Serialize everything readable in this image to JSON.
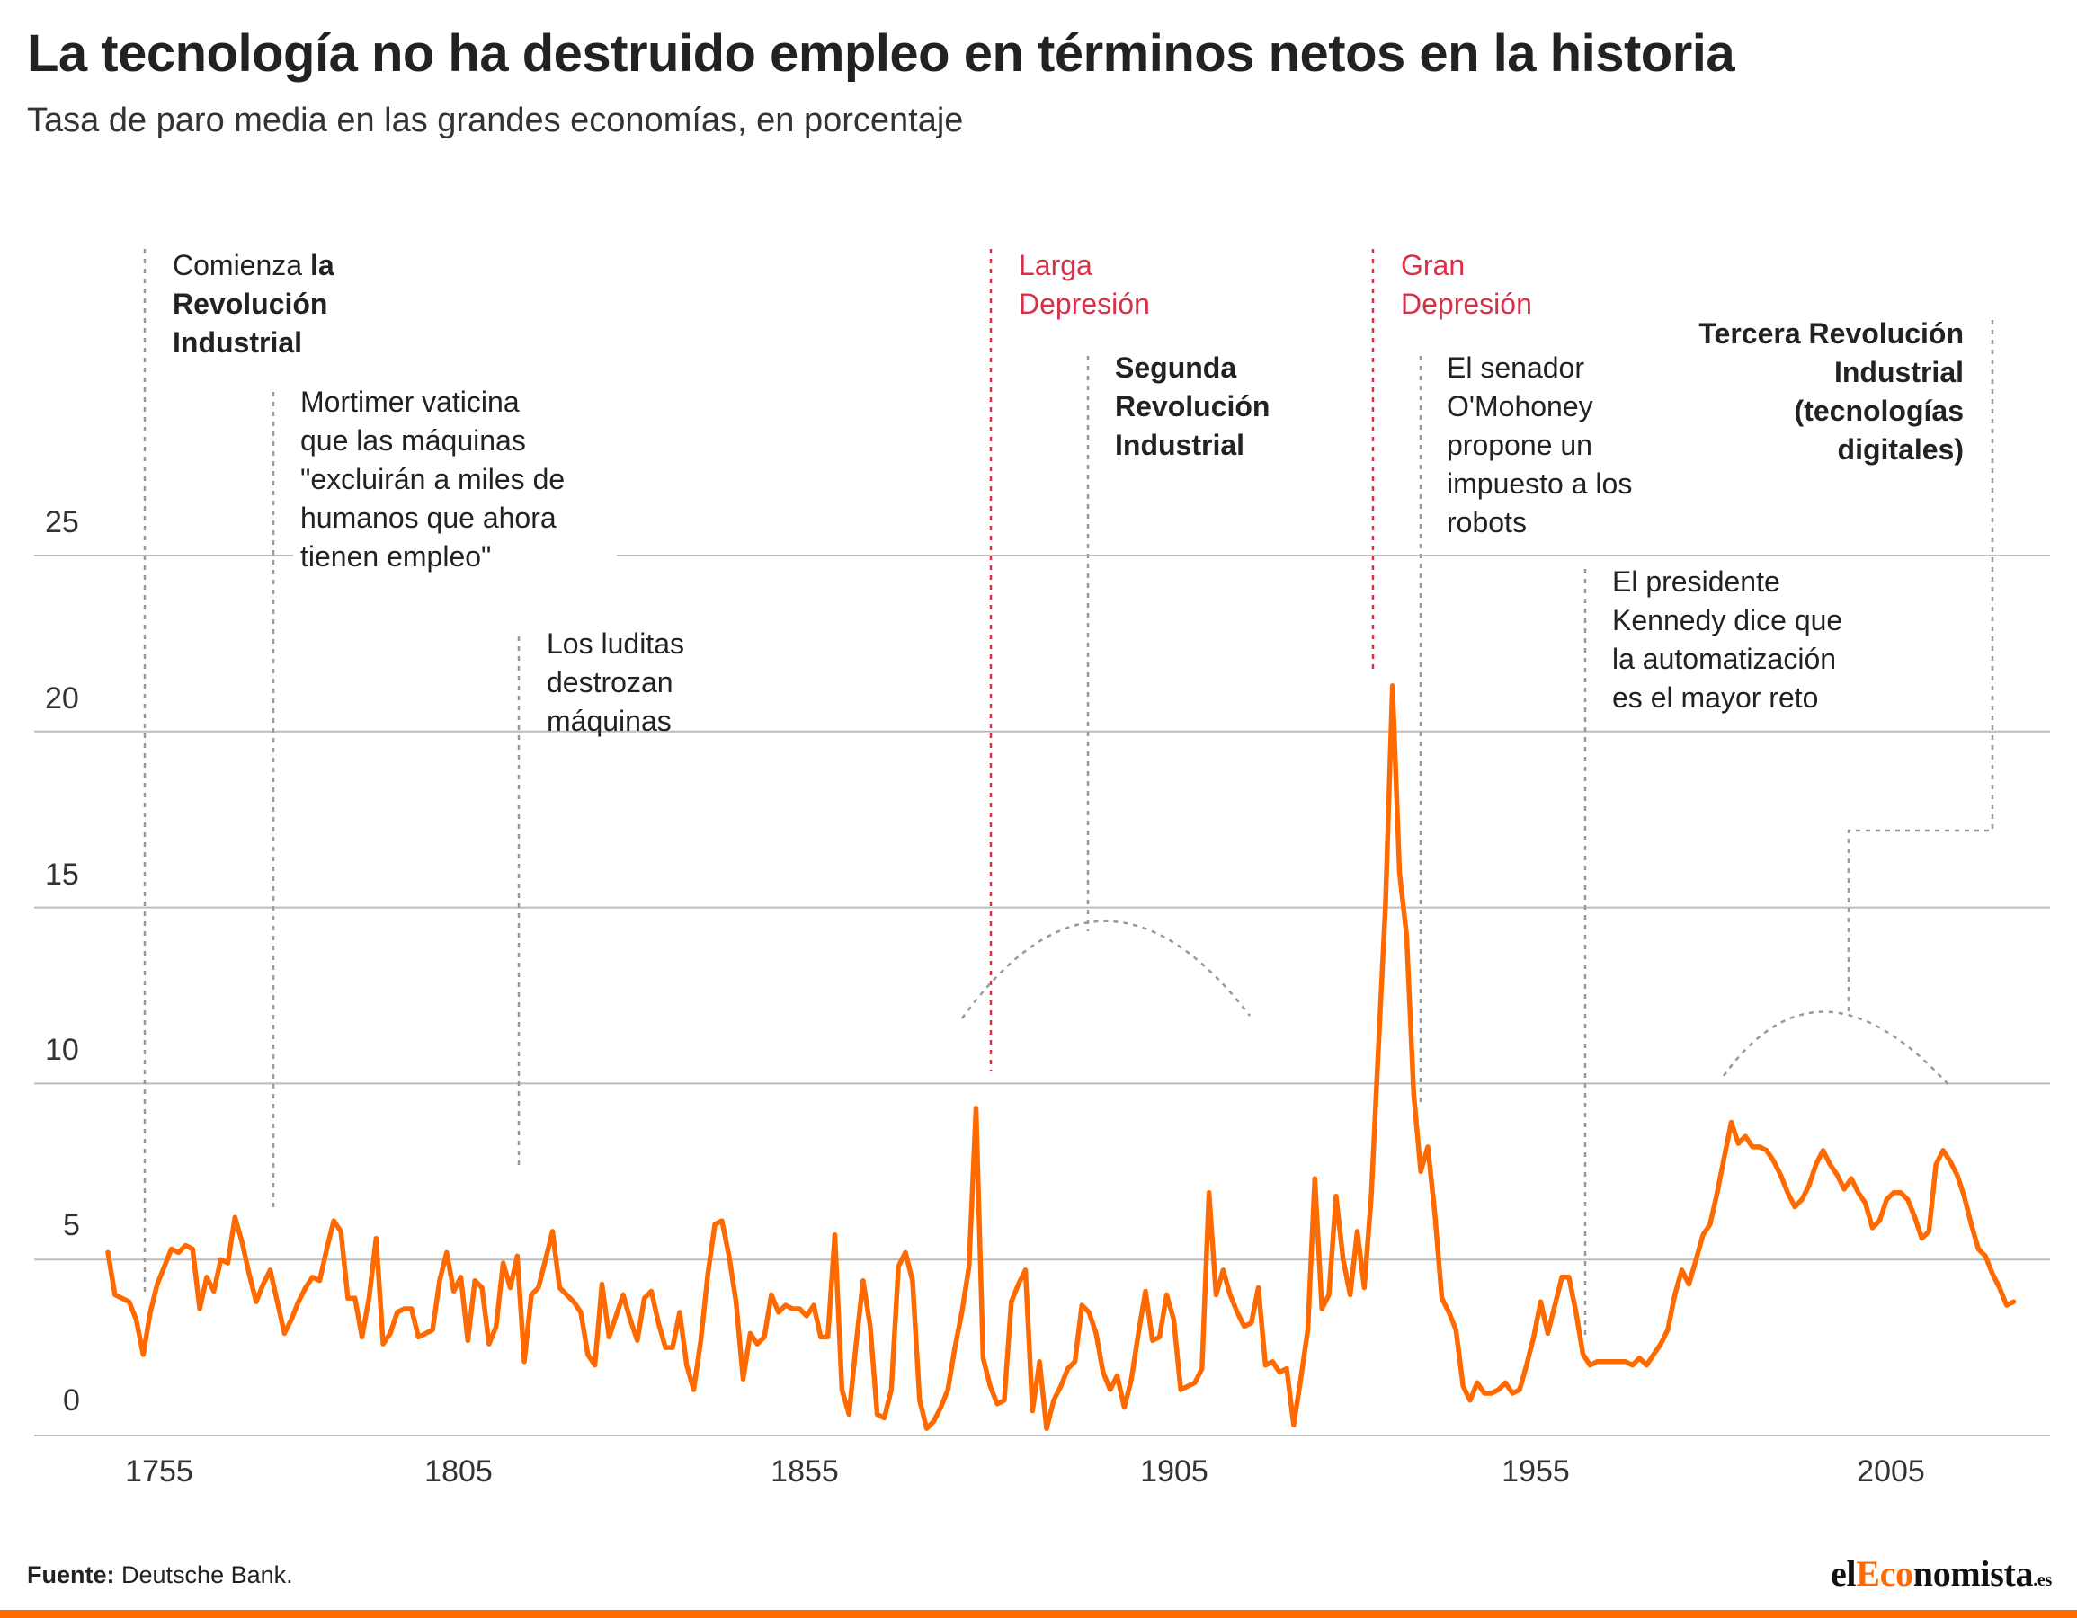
{
  "title": "La tecnología no ha destruido empleo en términos netos en la historia",
  "subtitle": "Tasa de paro media en las grandes economías, en porcentaje",
  "source": {
    "label": "Fuente:",
    "text": "Deutsche Bank."
  },
  "logo": {
    "part1": "el",
    "part2": "Eco",
    "part3": "nomista",
    "part4": ".es"
  },
  "colors": {
    "line": "#ff6a00",
    "grid": "#bdbdbd",
    "annotation": "#999999",
    "crisis": "#d9304a",
    "text": "#222222",
    "bar": "#ff6a00"
  },
  "annotations": {
    "rev1": {
      "normal": "Comienza ",
      "bold1": "la",
      "line2": "Revolución",
      "line3": "Industrial"
    },
    "mortimer": [
      "Mortimer vaticina",
      "que las máquinas",
      "\"excluirán a miles de",
      "humanos que ahora",
      "tienen empleo\""
    ],
    "luditas": [
      "Los luditas",
      "destrozan",
      "máquinas"
    ],
    "larga": [
      "Larga",
      "Depresión"
    ],
    "rev2": [
      "Segunda",
      "Revolución",
      "Industrial"
    ],
    "gran": [
      "Gran",
      "Depresión"
    ],
    "senador": [
      "El senador",
      "O'Mohoney",
      "propone un",
      "impuesto a los",
      "robots"
    ],
    "kennedy": [
      "El presidente",
      "Kennedy dice que",
      "la automatización",
      "es el mayor reto"
    ],
    "rev3": [
      "Tercera Revolución",
      "Industrial",
      "(tecnologías",
      "digitales)"
    ]
  },
  "chart_data": {
    "type": "line",
    "title": "La tecnología no ha destruido empleo en términos netos en la historia",
    "subtitle": "Tasa de paro media en las grandes economías, en porcentaje",
    "xlabel": "",
    "ylabel": "",
    "xlim": [
      1740,
      2020
    ],
    "ylim": [
      -1,
      25
    ],
    "x_ticks": [
      "1755",
      "1805",
      "1855",
      "1905",
      "1955",
      "2005"
    ],
    "y_ticks": [
      "25",
      "20",
      "15",
      "10",
      "5",
      "0"
    ],
    "grid": "horizontal",
    "series": [
      {
        "points": [
          [
            1750,
            5.2
          ],
          [
            1751,
            4.0
          ],
          [
            1752,
            3.9
          ],
          [
            1753,
            3.8
          ],
          [
            1754,
            3.3
          ],
          [
            1755,
            2.3
          ],
          [
            1756,
            3.5
          ],
          [
            1757,
            4.3
          ],
          [
            1758,
            4.8
          ],
          [
            1759,
            5.3
          ],
          [
            1760,
            5.2
          ],
          [
            1761,
            5.4
          ],
          [
            1762,
            5.3
          ],
          [
            1763,
            3.6
          ],
          [
            1764,
            4.5
          ],
          [
            1765,
            4.1
          ],
          [
            1766,
            5.0
          ],
          [
            1767,
            4.9
          ],
          [
            1768,
            6.2
          ],
          [
            1769,
            5.5
          ],
          [
            1770,
            4.6
          ],
          [
            1771,
            3.8
          ],
          [
            1772,
            4.3
          ],
          [
            1773,
            4.7
          ],
          [
            1774,
            3.8
          ],
          [
            1775,
            2.9
          ],
          [
            1776,
            3.3
          ],
          [
            1777,
            3.8
          ],
          [
            1778,
            4.2
          ],
          [
            1779,
            4.5
          ],
          [
            1780,
            4.4
          ],
          [
            1781,
            5.3
          ],
          [
            1782,
            6.1
          ],
          [
            1783,
            5.8
          ],
          [
            1784,
            3.9
          ],
          [
            1785,
            3.9
          ],
          [
            1786,
            2.8
          ],
          [
            1787,
            3.9
          ],
          [
            1788,
            5.6
          ],
          [
            1789,
            2.6
          ],
          [
            1790,
            2.9
          ],
          [
            1791,
            3.5
          ],
          [
            1792,
            3.6
          ],
          [
            1793,
            3.6
          ],
          [
            1794,
            2.8
          ],
          [
            1795,
            2.9
          ],
          [
            1796,
            3.0
          ],
          [
            1797,
            4.4
          ],
          [
            1798,
            5.2
          ],
          [
            1799,
            4.1
          ],
          [
            1800,
            4.5
          ],
          [
            1801,
            2.7
          ],
          [
            1802,
            4.4
          ],
          [
            1803,
            4.2
          ],
          [
            1804,
            2.6
          ],
          [
            1805,
            3.1
          ],
          [
            1806,
            4.9
          ],
          [
            1807,
            4.2
          ],
          [
            1808,
            5.1
          ],
          [
            1809,
            2.1
          ],
          [
            1810,
            4.0
          ],
          [
            1811,
            4.2
          ],
          [
            1812,
            5.0
          ],
          [
            1813,
            5.8
          ],
          [
            1814,
            4.2
          ],
          [
            1815,
            4.0
          ],
          [
            1816,
            3.8
          ],
          [
            1817,
            3.5
          ],
          [
            1818,
            2.3
          ],
          [
            1819,
            2.0
          ],
          [
            1820,
            4.3
          ],
          [
            1821,
            2.8
          ],
          [
            1822,
            3.4
          ],
          [
            1823,
            4.0
          ],
          [
            1824,
            3.3
          ],
          [
            1825,
            2.7
          ],
          [
            1826,
            3.9
          ],
          [
            1827,
            4.1
          ],
          [
            1828,
            3.2
          ],
          [
            1829,
            2.5
          ],
          [
            1830,
            2.5
          ],
          [
            1831,
            3.5
          ],
          [
            1832,
            2.0
          ],
          [
            1833,
            1.3
          ],
          [
            1834,
            2.7
          ],
          [
            1835,
            4.6
          ],
          [
            1836,
            6.0
          ],
          [
            1837,
            6.1
          ],
          [
            1838,
            5.1
          ],
          [
            1839,
            3.8
          ],
          [
            1840,
            1.6
          ],
          [
            1841,
            2.9
          ],
          [
            1842,
            2.6
          ],
          [
            1843,
            2.8
          ],
          [
            1844,
            4.0
          ],
          [
            1845,
            3.5
          ],
          [
            1846,
            3.7
          ],
          [
            1847,
            3.6
          ],
          [
            1848,
            3.6
          ],
          [
            1849,
            3.4
          ],
          [
            1850,
            3.7
          ],
          [
            1851,
            2.8
          ],
          [
            1852,
            2.8
          ],
          [
            1853,
            5.7
          ],
          [
            1854,
            1.3
          ],
          [
            1855,
            0.6
          ],
          [
            1856,
            2.6
          ],
          [
            1857,
            4.4
          ],
          [
            1858,
            3.1
          ],
          [
            1859,
            0.6
          ],
          [
            1860,
            0.5
          ],
          [
            1861,
            1.3
          ],
          [
            1862,
            4.8
          ],
          [
            1863,
            5.2
          ],
          [
            1864,
            4.4
          ],
          [
            1865,
            1.0
          ],
          [
            1866,
            0.2
          ],
          [
            1867,
            0.4
          ],
          [
            1868,
            0.8
          ],
          [
            1869,
            1.3
          ],
          [
            1870,
            2.5
          ],
          [
            1871,
            3.5
          ],
          [
            1872,
            4.8
          ],
          [
            1873,
            9.3
          ],
          [
            1874,
            2.2
          ],
          [
            1875,
            1.4
          ],
          [
            1876,
            0.9
          ],
          [
            1877,
            1.0
          ],
          [
            1878,
            3.8
          ],
          [
            1879,
            4.3
          ],
          [
            1880,
            4.7
          ],
          [
            1881,
            0.7
          ],
          [
            1882,
            2.1
          ],
          [
            1883,
            0.2
          ],
          [
            1884,
            1.0
          ],
          [
            1885,
            1.4
          ],
          [
            1886,
            1.9
          ],
          [
            1887,
            2.1
          ],
          [
            1888,
            3.7
          ],
          [
            1889,
            3.5
          ],
          [
            1890,
            2.9
          ],
          [
            1891,
            1.8
          ],
          [
            1892,
            1.3
          ],
          [
            1893,
            1.7
          ],
          [
            1894,
            0.8
          ],
          [
            1895,
            1.6
          ],
          [
            1896,
            2.9
          ],
          [
            1897,
            4.1
          ],
          [
            1898,
            2.7
          ],
          [
            1899,
            2.8
          ],
          [
            1900,
            4.0
          ],
          [
            1901,
            3.3
          ],
          [
            1902,
            1.3
          ],
          [
            1903,
            1.4
          ],
          [
            1904,
            1.5
          ],
          [
            1905,
            1.9
          ],
          [
            1906,
            6.9
          ],
          [
            1907,
            4.0
          ],
          [
            1908,
            4.7
          ],
          [
            1909,
            4.0
          ],
          [
            1910,
            3.5
          ],
          [
            1911,
            3.1
          ],
          [
            1912,
            3.2
          ],
          [
            1913,
            4.2
          ],
          [
            1914,
            2.0
          ],
          [
            1915,
            2.1
          ],
          [
            1916,
            1.8
          ],
          [
            1917,
            1.9
          ],
          [
            1918,
            0.3
          ],
          [
            1919,
            1.6
          ],
          [
            1920,
            3.0
          ],
          [
            1921,
            7.3
          ],
          [
            1922,
            3.6
          ],
          [
            1923,
            4.0
          ],
          [
            1924,
            6.8
          ],
          [
            1925,
            5.0
          ],
          [
            1926,
            4.0
          ],
          [
            1927,
            5.8
          ],
          [
            1928,
            4.2
          ],
          [
            1929,
            6.8
          ],
          [
            1930,
            11.0
          ],
          [
            1931,
            15.0
          ],
          [
            1932,
            21.3
          ],
          [
            1933,
            16.0
          ],
          [
            1934,
            14.2
          ],
          [
            1935,
            9.7
          ],
          [
            1936,
            7.5
          ],
          [
            1937,
            8.2
          ],
          [
            1938,
            6.3
          ],
          [
            1939,
            3.9
          ],
          [
            1940,
            3.5
          ],
          [
            1941,
            3.0
          ],
          [
            1942,
            1.4
          ],
          [
            1943,
            1.0
          ],
          [
            1944,
            1.5
          ],
          [
            1945,
            1.2
          ],
          [
            1946,
            1.2
          ],
          [
            1947,
            1.3
          ],
          [
            1948,
            1.5
          ],
          [
            1949,
            1.2
          ],
          [
            1950,
            1.3
          ],
          [
            1951,
            2.0
          ],
          [
            1952,
            2.8
          ],
          [
            1953,
            3.8
          ],
          [
            1954,
            2.9
          ],
          [
            1955,
            3.7
          ],
          [
            1956,
            4.5
          ],
          [
            1957,
            4.5
          ],
          [
            1958,
            3.5
          ],
          [
            1959,
            2.3
          ],
          [
            1960,
            2.0
          ],
          [
            1961,
            2.1
          ],
          [
            1962,
            2.1
          ],
          [
            1963,
            2.1
          ],
          [
            1964,
            2.1
          ],
          [
            1965,
            2.1
          ],
          [
            1966,
            2.0
          ],
          [
            1967,
            2.2
          ],
          [
            1968,
            2.0
          ],
          [
            1969,
            2.3
          ],
          [
            1970,
            2.6
          ],
          [
            1971,
            3.0
          ],
          [
            1972,
            4.0
          ],
          [
            1973,
            4.7
          ],
          [
            1974,
            4.3
          ],
          [
            1975,
            5.0
          ],
          [
            1976,
            5.7
          ],
          [
            1977,
            6.0
          ],
          [
            1978,
            6.9
          ],
          [
            1979,
            7.9
          ],
          [
            1980,
            8.9
          ],
          [
            1981,
            8.3
          ],
          [
            1982,
            8.5
          ],
          [
            1983,
            8.2
          ],
          [
            1984,
            8.2
          ],
          [
            1985,
            8.1
          ],
          [
            1986,
            7.8
          ],
          [
            1987,
            7.4
          ],
          [
            1988,
            6.9
          ],
          [
            1989,
            6.5
          ],
          [
            1990,
            6.7
          ],
          [
            1991,
            7.1
          ],
          [
            1992,
            7.7
          ],
          [
            1993,
            8.1
          ],
          [
            1994,
            7.7
          ],
          [
            1995,
            7.4
          ],
          [
            1996,
            7.0
          ],
          [
            1997,
            7.3
          ],
          [
            1998,
            6.9
          ],
          [
            1999,
            6.6
          ],
          [
            2000,
            5.9
          ],
          [
            2001,
            6.1
          ],
          [
            2002,
            6.7
          ],
          [
            2003,
            6.9
          ],
          [
            2004,
            6.9
          ],
          [
            2005,
            6.7
          ],
          [
            2006,
            6.2
          ],
          [
            2007,
            5.6
          ],
          [
            2008,
            5.8
          ],
          [
            2009,
            7.7
          ],
          [
            2010,
            8.1
          ],
          [
            2011,
            7.8
          ],
          [
            2012,
            7.4
          ],
          [
            2013,
            6.8
          ],
          [
            2014,
            6.0
          ],
          [
            2015,
            5.3
          ],
          [
            2016,
            5.1
          ],
          [
            2017,
            4.6
          ],
          [
            2018,
            4.2
          ],
          [
            2019,
            3.7
          ],
          [
            2020,
            3.8
          ]
        ]
      }
    ]
  }
}
